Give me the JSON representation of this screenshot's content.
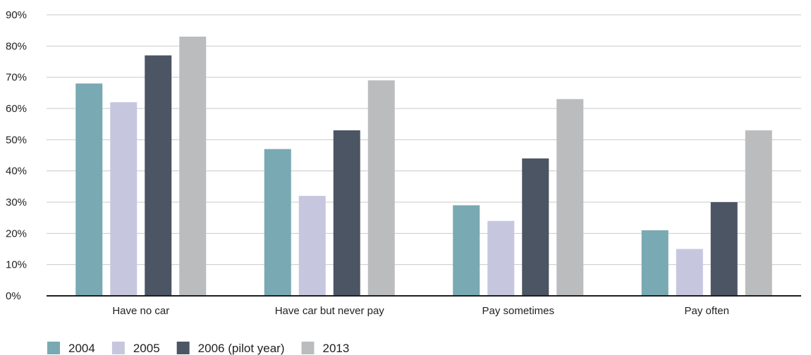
{
  "chart_data": {
    "type": "bar",
    "categories": [
      "Have no car",
      "Have car but never pay",
      "Pay sometimes",
      "Pay often"
    ],
    "series": [
      {
        "name": "2004",
        "values": [
          68,
          47,
          29,
          21
        ],
        "color": "#79a9b2"
      },
      {
        "name": "2005",
        "values": [
          62,
          32,
          24,
          15
        ],
        "color": "#c6c7df"
      },
      {
        "name": "2006 (pilot year)",
        "values": [
          77,
          53,
          44,
          30
        ],
        "color": "#4b5564"
      },
      {
        "name": "2013",
        "values": [
          83,
          69,
          63,
          53
        ],
        "color": "#bbbcbe"
      }
    ],
    "yticks": [
      "0%",
      "10%",
      "20%",
      "30%",
      "40%",
      "50%",
      "60%",
      "70%",
      "80%",
      "90%"
    ],
    "ylim": [
      0,
      90
    ],
    "ylabel": "",
    "xlabel": "",
    "title": "",
    "grid": true,
    "legend_position": "bottom-left"
  }
}
